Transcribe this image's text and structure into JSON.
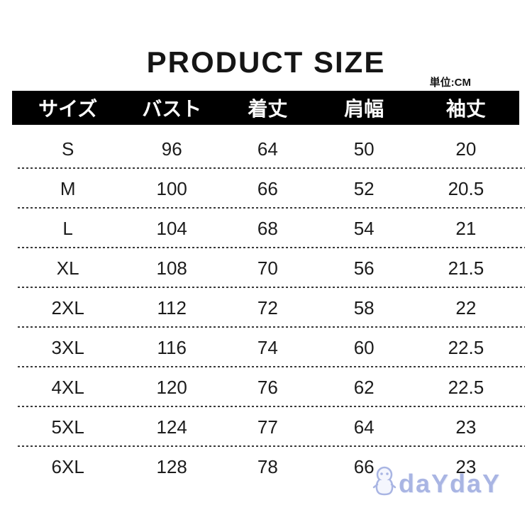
{
  "page": {
    "title": "PRODUCT SIZE",
    "unit_label": "単位:CM"
  },
  "table": {
    "headers": [
      "サイズ",
      "バスト",
      "着丈",
      "肩幅",
      "袖丈"
    ],
    "rows": [
      [
        "S",
        "96",
        "64",
        "50",
        "20"
      ],
      [
        "M",
        "100",
        "66",
        "52",
        "20.5"
      ],
      [
        "L",
        "104",
        "68",
        "54",
        "21"
      ],
      [
        "XL",
        "108",
        "70",
        "56",
        "21.5"
      ],
      [
        "2XL",
        "112",
        "72",
        "58",
        "22"
      ],
      [
        "3XL",
        "116",
        "74",
        "60",
        "22.5"
      ],
      [
        "4XL",
        "120",
        "76",
        "62",
        "22.5"
      ],
      [
        "5XL",
        "124",
        "77",
        "64",
        "23"
      ],
      [
        "6XL",
        "128",
        "78",
        "66",
        "23"
      ]
    ]
  },
  "watermark": {
    "text": "daYdaY"
  },
  "colors": {
    "header_bg": "#000000",
    "header_text": "#ffffff",
    "body_text": "#1c1c1c",
    "watermark": "#a9b5e3"
  },
  "chart_data": {
    "type": "table",
    "title": "PRODUCT SIZE",
    "unit": "CM",
    "columns": [
      "サイズ",
      "バスト",
      "着丈",
      "肩幅",
      "袖丈"
    ],
    "rows": [
      [
        "S",
        96,
        64,
        50,
        20
      ],
      [
        "M",
        100,
        66,
        52,
        20.5
      ],
      [
        "L",
        104,
        68,
        54,
        21
      ],
      [
        "XL",
        108,
        70,
        56,
        21.5
      ],
      [
        "2XL",
        112,
        72,
        58,
        22
      ],
      [
        "3XL",
        116,
        74,
        60,
        22.5
      ],
      [
        "4XL",
        120,
        76,
        62,
        22.5
      ],
      [
        "5XL",
        124,
        77,
        64,
        23
      ],
      [
        "6XL",
        128,
        78,
        66,
        23
      ]
    ]
  }
}
